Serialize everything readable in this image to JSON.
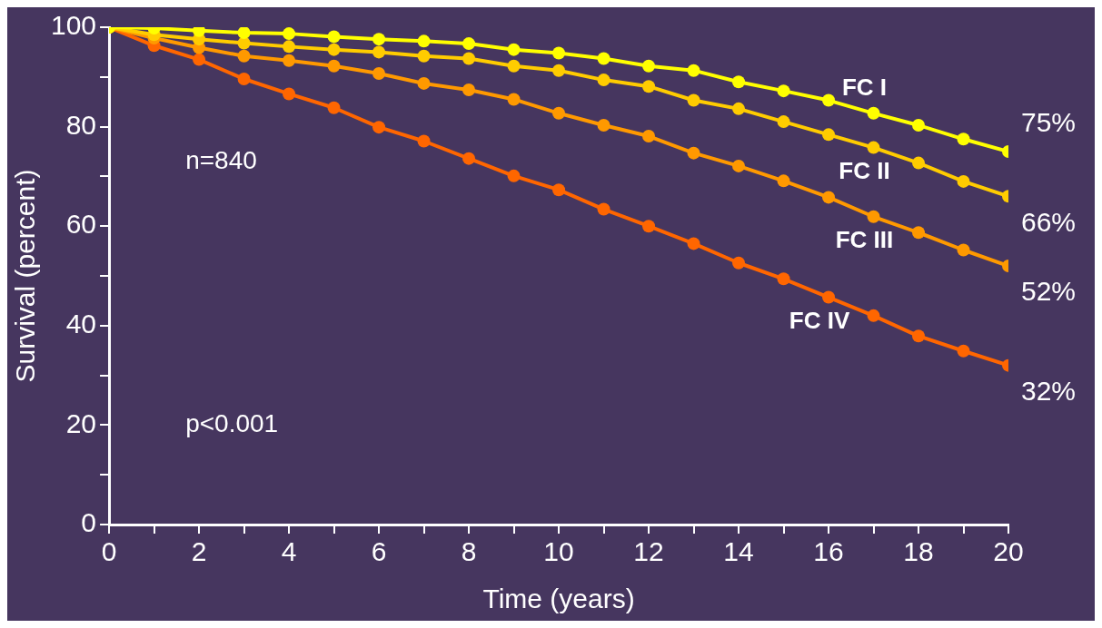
{
  "chart_data": {
    "type": "line",
    "xlabel": "Time (years)",
    "ylabel": "Survival (percent)",
    "x": [
      0,
      1,
      2,
      3,
      4,
      5,
      6,
      7,
      8,
      9,
      10,
      11,
      12,
      13,
      14,
      15,
      16,
      17,
      18,
      19,
      20
    ],
    "xlim": [
      0,
      20
    ],
    "xticks": [
      0,
      {
        "value": 1,
        "label": null
      },
      2,
      {
        "value": 3,
        "label": null
      },
      4,
      {
        "value": 5,
        "label": null
      },
      6,
      {
        "value": 7,
        "label": null
      },
      8,
      {
        "value": 9,
        "label": null
      },
      10,
      {
        "value": 11,
        "label": null
      },
      12,
      {
        "value": 13,
        "label": null
      },
      14,
      {
        "value": 15,
        "label": null
      },
      16,
      {
        "value": 17,
        "label": null
      },
      18,
      {
        "value": 19,
        "label": null
      },
      20
    ],
    "ylim": [
      0,
      100
    ],
    "yticks": [
      0,
      {
        "value": 10,
        "label": null
      },
      20,
      {
        "value": 30,
        "label": null
      },
      40,
      {
        "value": 50,
        "label": null
      },
      60,
      {
        "value": 70,
        "label": null
      },
      80,
      {
        "value": 90,
        "label": null
      },
      100
    ],
    "grid": false,
    "legend": false,
    "marker": "circle",
    "line_style": "solid",
    "annotations": [
      "n=840",
      "p<0.001"
    ],
    "series": [
      {
        "name": "FC I",
        "color": "#ffff00",
        "values": [
          100,
          99.8,
          99.3,
          98.9,
          98.7,
          98.1,
          97.6,
          97.2,
          96.7,
          95.5,
          94.8,
          93.7,
          92.2,
          91.3,
          89,
          87.2,
          85.3,
          82.7,
          80.3,
          77.5,
          75
        ],
        "value_labels": [
          null,
          null,
          null,
          null,
          null,
          null,
          null,
          null,
          null,
          null,
          null,
          null,
          null,
          null,
          null,
          null,
          null,
          null,
          null,
          null,
          "75%"
        ]
      },
      {
        "name": "FC II",
        "color": "#ffcc00",
        "values": [
          100,
          98.5,
          97.6,
          96.8,
          96.1,
          95.5,
          95,
          94.2,
          93.7,
          92.2,
          91.3,
          89.4,
          88.1,
          85.3,
          83.6,
          81,
          78.4,
          75.8,
          72.7,
          69,
          66
        ],
        "value_labels": [
          null,
          null,
          null,
          null,
          null,
          null,
          null,
          null,
          null,
          null,
          null,
          null,
          null,
          null,
          null,
          null,
          null,
          null,
          null,
          null,
          "66%"
        ]
      },
      {
        "name": "FC III",
        "color": "#ff9900",
        "values": [
          100,
          97.8,
          95.9,
          94.2,
          93.3,
          92.2,
          90.7,
          88.7,
          87.4,
          85.5,
          82.7,
          80.3,
          78.1,
          74.7,
          72.1,
          69.1,
          65.8,
          61.9,
          58.7,
          55.2,
          52
        ],
        "value_labels": [
          null,
          null,
          null,
          null,
          null,
          null,
          null,
          null,
          null,
          null,
          null,
          null,
          null,
          null,
          null,
          null,
          null,
          null,
          null,
          null,
          "52%"
        ]
      },
      {
        "name": "FC IV",
        "color": "#ff6600",
        "values": [
          100,
          96.3,
          93.5,
          89.6,
          86.6,
          83.8,
          79.9,
          77.1,
          73.6,
          70.1,
          67.3,
          63.4,
          60,
          56.5,
          52.6,
          49.4,
          45.7,
          42,
          37.9,
          34.9,
          32
        ],
        "value_labels": [
          null,
          null,
          null,
          null,
          null,
          null,
          null,
          null,
          null,
          null,
          null,
          null,
          null,
          null,
          null,
          null,
          null,
          null,
          null,
          null,
          "32%"
        ]
      }
    ]
  }
}
